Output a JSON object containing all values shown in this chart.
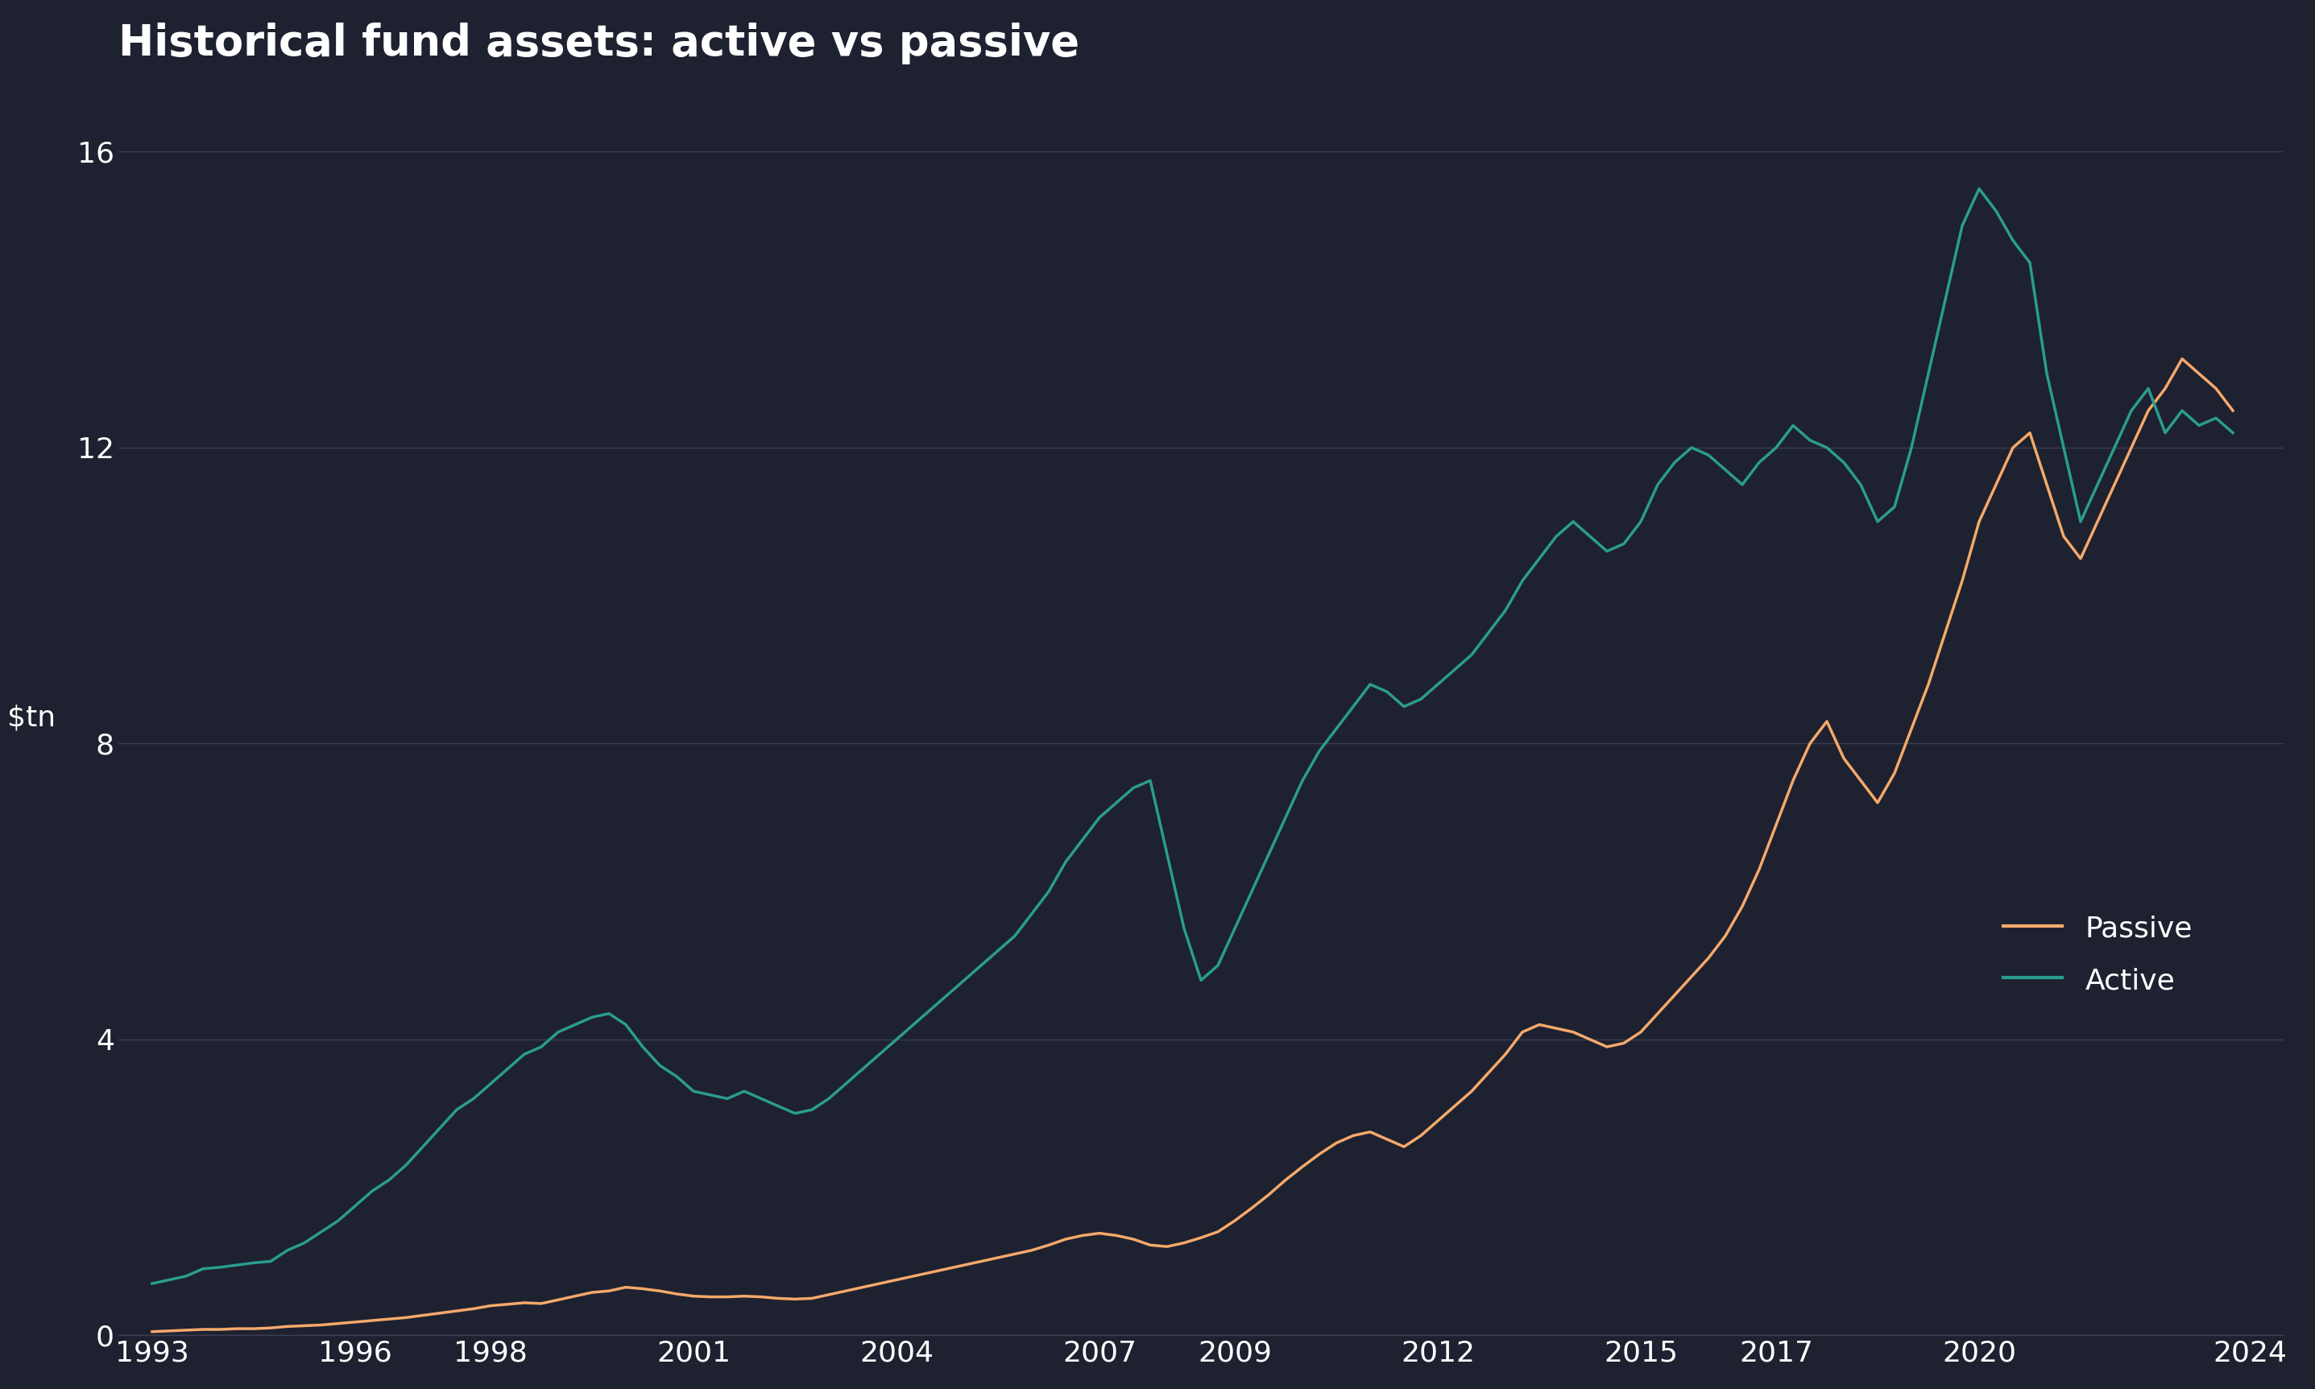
{
  "title": "Historical fund assets: active vs passive",
  "ylabel": "$tn",
  "background_color": "#1e2130",
  "text_color": "#ffffff",
  "grid_color": "#3a3f55",
  "passive_color": "#f5a96b",
  "active_color": "#2a9d8f",
  "ylim": [
    0,
    17
  ],
  "yticks": [
    0,
    4,
    8,
    12,
    16
  ],
  "xticks": [
    1993,
    1996,
    1998,
    2001,
    2004,
    2007,
    2009,
    2012,
    2015,
    2017,
    2020,
    2024
  ],
  "passive": {
    "years": [
      1993,
      1993.25,
      1993.5,
      1993.75,
      1994,
      1994.25,
      1994.5,
      1994.75,
      1995,
      1995.25,
      1995.5,
      1995.75,
      1996,
      1996.25,
      1996.5,
      1996.75,
      1997,
      1997.25,
      1997.5,
      1997.75,
      1998,
      1998.25,
      1998.5,
      1998.75,
      1999,
      1999.25,
      1999.5,
      1999.75,
      2000,
      2000.25,
      2000.5,
      2000.75,
      2001,
      2001.25,
      2001.5,
      2001.75,
      2002,
      2002.25,
      2002.5,
      2002.75,
      2003,
      2003.25,
      2003.5,
      2003.75,
      2004,
      2004.25,
      2004.5,
      2004.75,
      2005,
      2005.25,
      2005.5,
      2005.75,
      2006,
      2006.25,
      2006.5,
      2006.75,
      2007,
      2007.25,
      2007.5,
      2007.75,
      2008,
      2008.25,
      2008.5,
      2008.75,
      2009,
      2009.25,
      2009.5,
      2009.75,
      2010,
      2010.25,
      2010.5,
      2010.75,
      2011,
      2011.25,
      2011.5,
      2011.75,
      2012,
      2012.25,
      2012.5,
      2012.75,
      2013,
      2013.25,
      2013.5,
      2013.75,
      2014,
      2014.25,
      2014.5,
      2014.75,
      2015,
      2015.25,
      2015.5,
      2015.75,
      2016,
      2016.25,
      2016.5,
      2016.75,
      2017,
      2017.25,
      2017.5,
      2017.75,
      2018,
      2018.25,
      2018.5,
      2018.75,
      2019,
      2019.25,
      2019.5,
      2019.75,
      2020,
      2020.25,
      2020.5,
      2020.75,
      2021,
      2021.25,
      2021.5,
      2021.75,
      2022,
      2022.25,
      2022.5,
      2022.75,
      2023,
      2023.25,
      2023.5,
      2023.75
    ],
    "values": [
      0.05,
      0.06,
      0.07,
      0.08,
      0.08,
      0.09,
      0.09,
      0.1,
      0.12,
      0.13,
      0.14,
      0.16,
      0.18,
      0.2,
      0.22,
      0.24,
      0.27,
      0.3,
      0.33,
      0.36,
      0.4,
      0.42,
      0.44,
      0.43,
      0.48,
      0.53,
      0.58,
      0.6,
      0.65,
      0.63,
      0.6,
      0.56,
      0.53,
      0.52,
      0.52,
      0.53,
      0.52,
      0.5,
      0.49,
      0.5,
      0.55,
      0.6,
      0.65,
      0.7,
      0.75,
      0.8,
      0.85,
      0.9,
      0.95,
      1.0,
      1.05,
      1.1,
      1.15,
      1.22,
      1.3,
      1.35,
      1.38,
      1.35,
      1.3,
      1.22,
      1.2,
      1.25,
      1.32,
      1.4,
      1.55,
      1.72,
      1.9,
      2.1,
      2.28,
      2.45,
      2.6,
      2.7,
      2.75,
      2.65,
      2.55,
      2.7,
      2.9,
      3.1,
      3.3,
      3.55,
      3.8,
      4.1,
      4.2,
      4.15,
      4.1,
      4.0,
      3.9,
      3.95,
      4.1,
      4.35,
      4.6,
      4.85,
      5.1,
      5.4,
      5.8,
      6.3,
      6.9,
      7.5,
      8.0,
      8.3,
      7.8,
      7.5,
      7.2,
      7.6,
      8.2,
      8.8,
      9.5,
      10.2,
      11.0,
      11.5,
      12.0,
      12.2,
      11.5,
      10.8,
      10.5,
      11.0,
      11.5,
      12.0,
      12.5,
      12.8,
      13.2,
      13.0,
      12.8,
      12.5
    ]
  },
  "active": {
    "years": [
      1993,
      1993.25,
      1993.5,
      1993.75,
      1994,
      1994.25,
      1994.5,
      1994.75,
      1995,
      1995.25,
      1995.5,
      1995.75,
      1996,
      1996.25,
      1996.5,
      1996.75,
      1997,
      1997.25,
      1997.5,
      1997.75,
      1998,
      1998.25,
      1998.5,
      1998.75,
      1999,
      1999.25,
      1999.5,
      1999.75,
      2000,
      2000.25,
      2000.5,
      2000.75,
      2001,
      2001.25,
      2001.5,
      2001.75,
      2002,
      2002.25,
      2002.5,
      2002.75,
      2003,
      2003.25,
      2003.5,
      2003.75,
      2004,
      2004.25,
      2004.5,
      2004.75,
      2005,
      2005.25,
      2005.5,
      2005.75,
      2006,
      2006.25,
      2006.5,
      2006.75,
      2007,
      2007.25,
      2007.5,
      2007.75,
      2008,
      2008.25,
      2008.5,
      2008.75,
      2009,
      2009.25,
      2009.5,
      2009.75,
      2010,
      2010.25,
      2010.5,
      2010.75,
      2011,
      2011.25,
      2011.5,
      2011.75,
      2012,
      2012.25,
      2012.5,
      2012.75,
      2013,
      2013.25,
      2013.5,
      2013.75,
      2014,
      2014.25,
      2014.5,
      2014.75,
      2015,
      2015.25,
      2015.5,
      2015.75,
      2016,
      2016.25,
      2016.5,
      2016.75,
      2017,
      2017.25,
      2017.5,
      2017.75,
      2018,
      2018.25,
      2018.5,
      2018.75,
      2019,
      2019.25,
      2019.5,
      2019.75,
      2020,
      2020.25,
      2020.5,
      2020.75,
      2021,
      2021.25,
      2021.5,
      2021.75,
      2022,
      2022.25,
      2022.5,
      2022.75,
      2023,
      2023.25,
      2023.5,
      2023.75
    ],
    "values": [
      0.7,
      0.75,
      0.8,
      0.9,
      0.92,
      0.95,
      0.98,
      1.0,
      1.15,
      1.25,
      1.4,
      1.55,
      1.75,
      1.95,
      2.1,
      2.3,
      2.55,
      2.8,
      3.05,
      3.2,
      3.4,
      3.6,
      3.8,
      3.9,
      4.1,
      4.2,
      4.3,
      4.35,
      4.2,
      3.9,
      3.65,
      3.5,
      3.3,
      3.25,
      3.2,
      3.3,
      3.2,
      3.1,
      3.0,
      3.05,
      3.2,
      3.4,
      3.6,
      3.8,
      4.0,
      4.2,
      4.4,
      4.6,
      4.8,
      5.0,
      5.2,
      5.4,
      5.7,
      6.0,
      6.4,
      6.7,
      7.0,
      7.2,
      7.4,
      7.5,
      6.5,
      5.5,
      4.8,
      5.0,
      5.5,
      6.0,
      6.5,
      7.0,
      7.5,
      7.9,
      8.2,
      8.5,
      8.8,
      8.7,
      8.5,
      8.6,
      8.8,
      9.0,
      9.2,
      9.5,
      9.8,
      10.2,
      10.5,
      10.8,
      11.0,
      10.8,
      10.6,
      10.7,
      11.0,
      11.5,
      11.8,
      12.0,
      11.9,
      11.7,
      11.5,
      11.8,
      12.0,
      12.3,
      12.1,
      12.0,
      11.8,
      11.5,
      11.0,
      11.2,
      12.0,
      13.0,
      14.0,
      15.0,
      15.5,
      15.2,
      14.8,
      14.5,
      13.0,
      12.0,
      11.0,
      11.5,
      12.0,
      12.5,
      12.8,
      12.2,
      12.5,
      12.3,
      12.4,
      12.2
    ]
  },
  "legend_passive": "Passive",
  "legend_active": "Active"
}
